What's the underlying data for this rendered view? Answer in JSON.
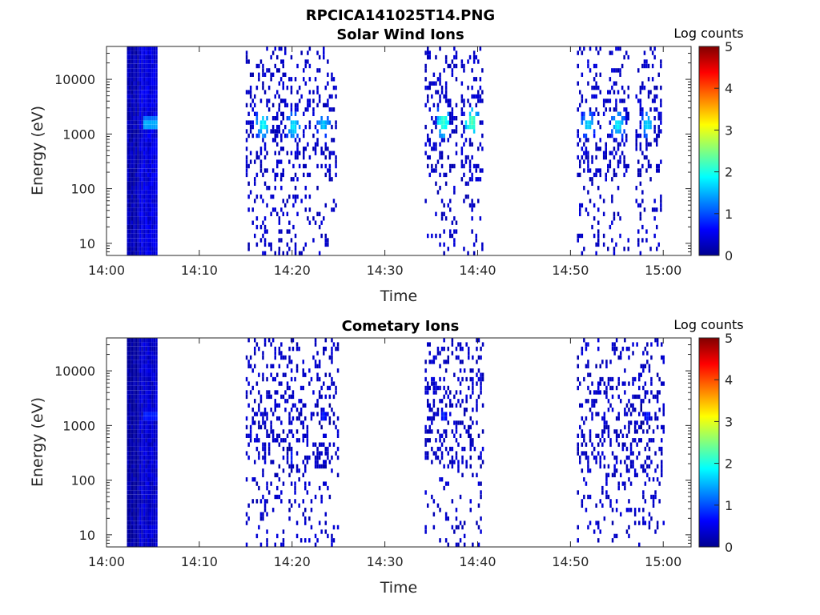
{
  "figure_title": "RPCICA141025T14.PNG",
  "colormap": [
    "#00008f",
    "#0000ff",
    "#0080ff",
    "#00ffff",
    "#80ff80",
    "#ffff00",
    "#ff8000",
    "#ff0000",
    "#800000"
  ],
  "chart_data": [
    {
      "type": "heatmap",
      "title": "Solar Wind Ions",
      "xlabel": "Time",
      "ylabel": "Energy (eV)",
      "x_ticks": [
        "14:00",
        "14:10",
        "14:20",
        "14:30",
        "14:40",
        "14:50",
        "15:00"
      ],
      "x_tick_minutes": [
        0,
        10,
        20,
        30,
        40,
        50,
        60
      ],
      "xlim_minutes": [
        0,
        63
      ],
      "y_scale": "log",
      "y_ticks": [
        "10",
        "100",
        "1000",
        "10000"
      ],
      "y_tick_values": [
        10,
        100,
        1000,
        10000
      ],
      "ylim": [
        6,
        40000
      ],
      "colorbar": {
        "label": "Log counts",
        "ticks": [
          "0",
          "1",
          "2",
          "3",
          "4",
          "5"
        ],
        "range": [
          0,
          5
        ]
      },
      "bursts": [
        {
          "t_min": 2.2,
          "t_max": 5.3,
          "e_low": 6,
          "e_high": 40000,
          "level": 0.45,
          "kind": "block",
          "hot_energy": 1500,
          "hot_level": 1.6
        },
        {
          "t_min": 15.0,
          "t_max": 18.8,
          "peak_t": 16.8,
          "peak_energy": 1500,
          "peak_level": 2.0,
          "kind": "sparse"
        },
        {
          "t_min": 18.5,
          "t_max": 21.8,
          "peak_t": 20.0,
          "peak_energy": 1400,
          "peak_level": 1.9,
          "kind": "sparse"
        },
        {
          "t_min": 22.2,
          "t_max": 24.8,
          "peak_t": 23.3,
          "peak_energy": 1500,
          "peak_level": 1.7,
          "kind": "sparse"
        },
        {
          "t_min": 34.3,
          "t_max": 37.8,
          "peak_t": 36.2,
          "peak_energy": 1600,
          "peak_level": 2.2,
          "kind": "sparse"
        },
        {
          "t_min": 38.2,
          "t_max": 40.5,
          "peak_t": 39.3,
          "peak_energy": 1600,
          "peak_level": 2.3,
          "kind": "sparse"
        },
        {
          "t_min": 50.7,
          "t_max": 53.3,
          "peak_t": 51.8,
          "peak_energy": 1500,
          "peak_level": 1.8,
          "kind": "sparse"
        },
        {
          "t_min": 53.5,
          "t_max": 56.2,
          "peak_t": 55.0,
          "peak_energy": 1500,
          "peak_level": 1.9,
          "kind": "sparse"
        },
        {
          "t_min": 57.0,
          "t_max": 59.8,
          "peak_t": 58.2,
          "peak_energy": 1500,
          "peak_level": 1.8,
          "kind": "sparse"
        }
      ]
    },
    {
      "type": "heatmap",
      "title": "Cometary Ions",
      "xlabel": "Time",
      "ylabel": "Energy (eV)",
      "x_ticks": [
        "14:00",
        "14:10",
        "14:20",
        "14:30",
        "14:40",
        "14:50",
        "15:00"
      ],
      "x_tick_minutes": [
        0,
        10,
        20,
        30,
        40,
        50,
        60
      ],
      "xlim_minutes": [
        0,
        63
      ],
      "y_scale": "log",
      "y_ticks": [
        "10",
        "100",
        "1000",
        "10000"
      ],
      "y_tick_values": [
        10,
        100,
        1000,
        10000
      ],
      "ylim": [
        6,
        40000
      ],
      "colorbar": {
        "label": "Log counts",
        "ticks": [
          "0",
          "1",
          "2",
          "3",
          "4",
          "5"
        ],
        "range": [
          0,
          5
        ]
      },
      "bursts": [
        {
          "t_min": 2.2,
          "t_max": 5.3,
          "e_low": 6,
          "e_high": 40000,
          "level": 0.35,
          "kind": "block",
          "hot_energy": 1500,
          "hot_level": 0.9
        },
        {
          "t_min": 15.0,
          "t_max": 20.0,
          "peak_t": 20.0,
          "peak_energy": 250,
          "peak_level": 0.9,
          "kind": "sparse"
        },
        {
          "t_min": 20.0,
          "t_max": 25.0,
          "peak_t": 23.3,
          "peak_energy": 1500,
          "peak_level": 0.8,
          "kind": "sparse"
        },
        {
          "t_min": 34.3,
          "t_max": 40.5,
          "peak_t": 36.2,
          "peak_energy": 1500,
          "peak_level": 0.9,
          "kind": "sparse"
        },
        {
          "t_min": 50.7,
          "t_max": 60.0,
          "peak_t": 58.2,
          "peak_energy": 1500,
          "peak_level": 0.8,
          "kind": "sparse"
        }
      ]
    }
  ]
}
